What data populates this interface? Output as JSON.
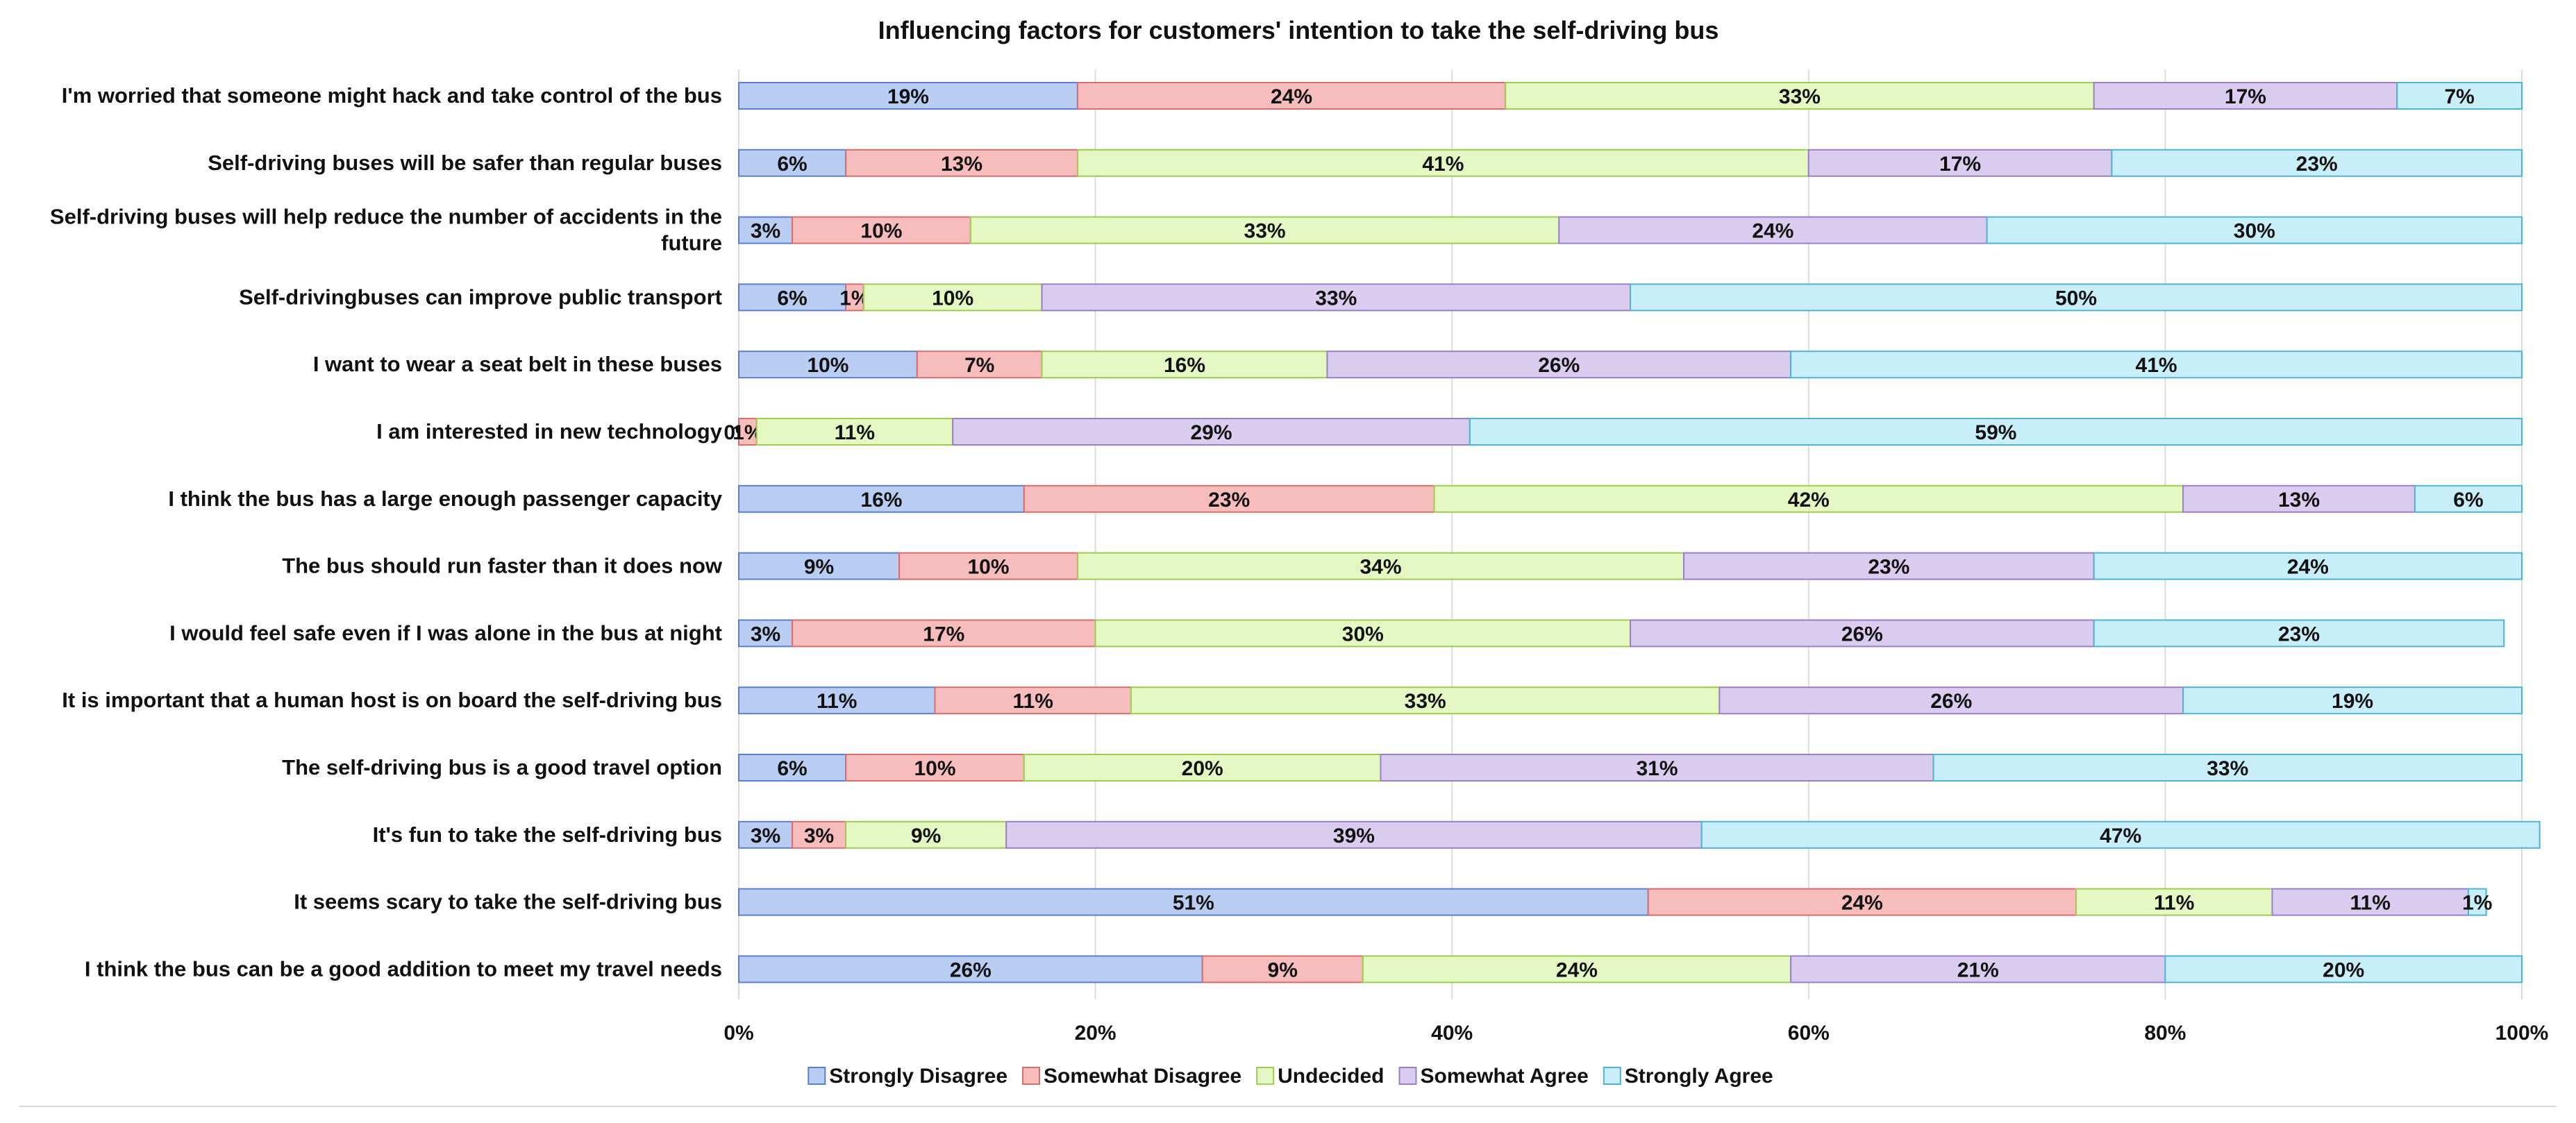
{
  "chart_data": {
    "type": "bar",
    "orientation": "horizontal",
    "stacked": "percent",
    "title": "Influencing factors for customers' intention to take the self-driving bus",
    "xlabel": "",
    "ylabel": "",
    "xlim": [
      0,
      100
    ],
    "x_ticks": [
      "0%",
      "20%",
      "40%",
      "60%",
      "80%",
      "100%"
    ],
    "grid": true,
    "legend_position": "bottom",
    "categories": [
      "I'm worried that someone might hack and take control of the bus",
      "Self-driving buses will be safer than regular buses",
      "Self-driving buses will help reduce the number of accidents in the future",
      "Self-drivingbuses can improve public transport",
      "I want to wear a seat belt in these buses",
      "I am interested in new technology",
      "I think the bus has a large enough passenger capacity",
      "The bus should run faster than it does now",
      "I would feel safe even if I was alone in the bus at night",
      "It is important that a human host is on board the self-driving bus",
      "The self-driving bus is a good travel option",
      "It's fun to take the self-driving bus",
      "It seems scary to take the self-driving bus",
      "I think the bus can be a good addition to meet my travel needs"
    ],
    "series": [
      {
        "name": "Strongly Disagree",
        "color": "#b9cdf3",
        "stroke": "#5b7fcf",
        "values": [
          19,
          6,
          3,
          6,
          10,
          0,
          16,
          9,
          3,
          11,
          6,
          3,
          51,
          26
        ]
      },
      {
        "name": "Somewhat Disagree",
        "color": "#f7bcbc",
        "stroke": "#d96c6c",
        "values": [
          24,
          13,
          10,
          1,
          7,
          1,
          23,
          10,
          17,
          11,
          10,
          3,
          24,
          9
        ]
      },
      {
        "name": "Undecided",
        "color": "#e5f7c2",
        "stroke": "#9ccc50",
        "values": [
          33,
          41,
          33,
          10,
          16,
          11,
          42,
          34,
          30,
          33,
          20,
          9,
          11,
          24
        ]
      },
      {
        "name": "Somewhat Agree",
        "color": "#d9ccef",
        "stroke": "#9a7fc7",
        "values": [
          17,
          17,
          24,
          33,
          26,
          29,
          13,
          23,
          26,
          26,
          31,
          39,
          11,
          21
        ]
      },
      {
        "name": "Strongly Agree",
        "color": "#c8eef9",
        "stroke": "#4fb3d4",
        "values": [
          7,
          23,
          30,
          50,
          41,
          59,
          6,
          24,
          23,
          19,
          33,
          47,
          1,
          20
        ]
      }
    ]
  }
}
